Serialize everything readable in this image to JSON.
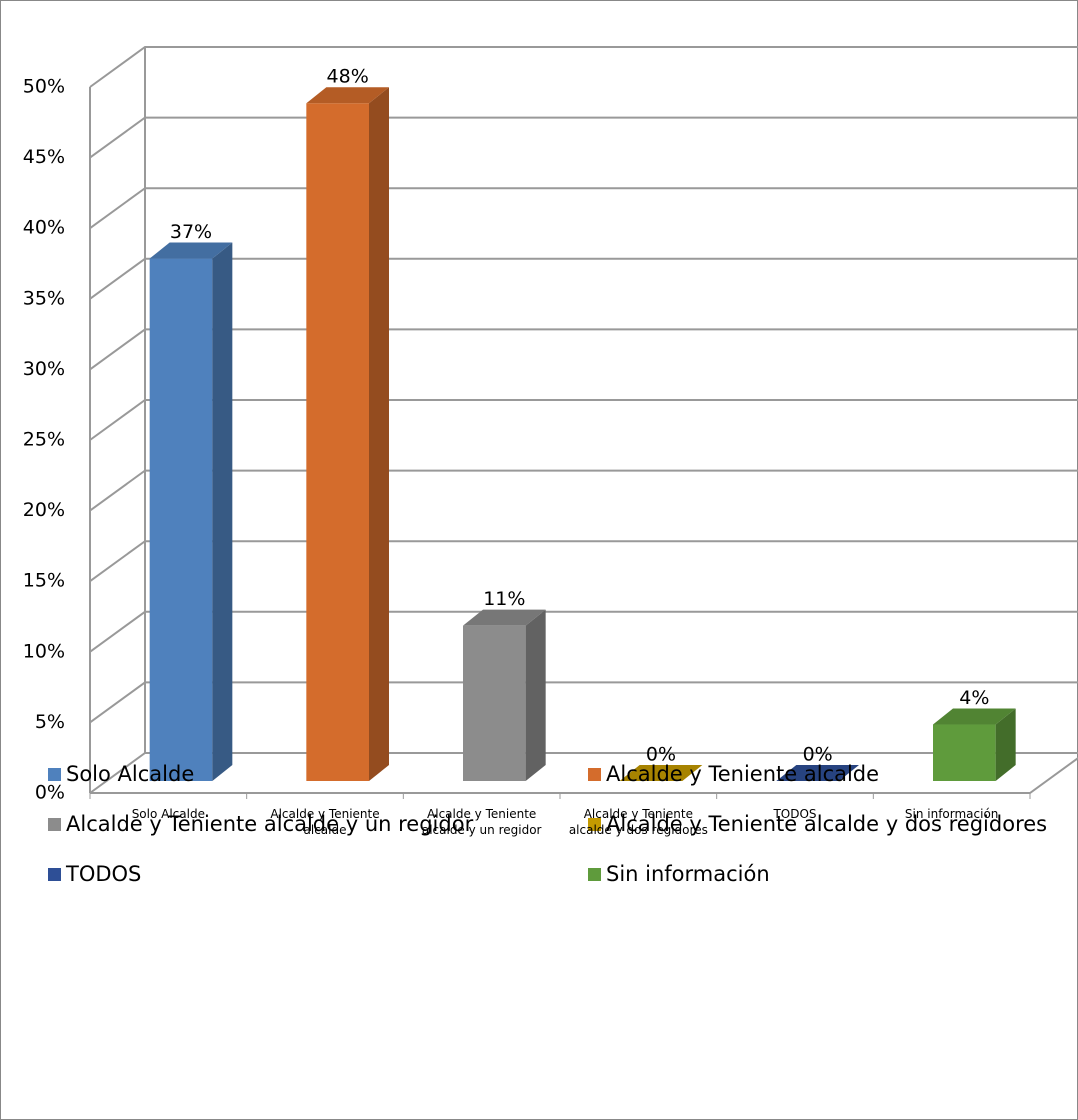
{
  "chart_data": {
    "type": "bar3d",
    "categories": [
      "Solo Alcalde",
      "Alcalde y Teniente alcalde",
      "Alcalde y Teniente alcalde y un regidor",
      "Alcalde y Teniente alcalde y dos regidores",
      "TODOS",
      "Sin información"
    ],
    "values": [
      37,
      48,
      11,
      0,
      0,
      4
    ],
    "value_labels": [
      "37%",
      "48%",
      "11%",
      "0%",
      "0%",
      "4%"
    ],
    "colors": [
      "#4f81bd",
      "#d46c2c",
      "#8c8c8c",
      "#c49a00",
      "#2e4f96",
      "#5f9b3c"
    ],
    "ylim": [
      0,
      50
    ],
    "yticks": [
      {
        "value": 0,
        "label": "0%"
      },
      {
        "value": 5,
        "label": "5%"
      },
      {
        "value": 10,
        "label": "10%"
      },
      {
        "value": 15,
        "label": "15%"
      },
      {
        "value": 20,
        "label": "20%"
      },
      {
        "value": 25,
        "label": "25%"
      },
      {
        "value": 30,
        "label": "30%"
      },
      {
        "value": 35,
        "label": "35%"
      },
      {
        "value": 40,
        "label": "40%"
      },
      {
        "value": 45,
        "label": "45%"
      },
      {
        "value": 50,
        "label": "50%"
      }
    ],
    "grid": true
  }
}
